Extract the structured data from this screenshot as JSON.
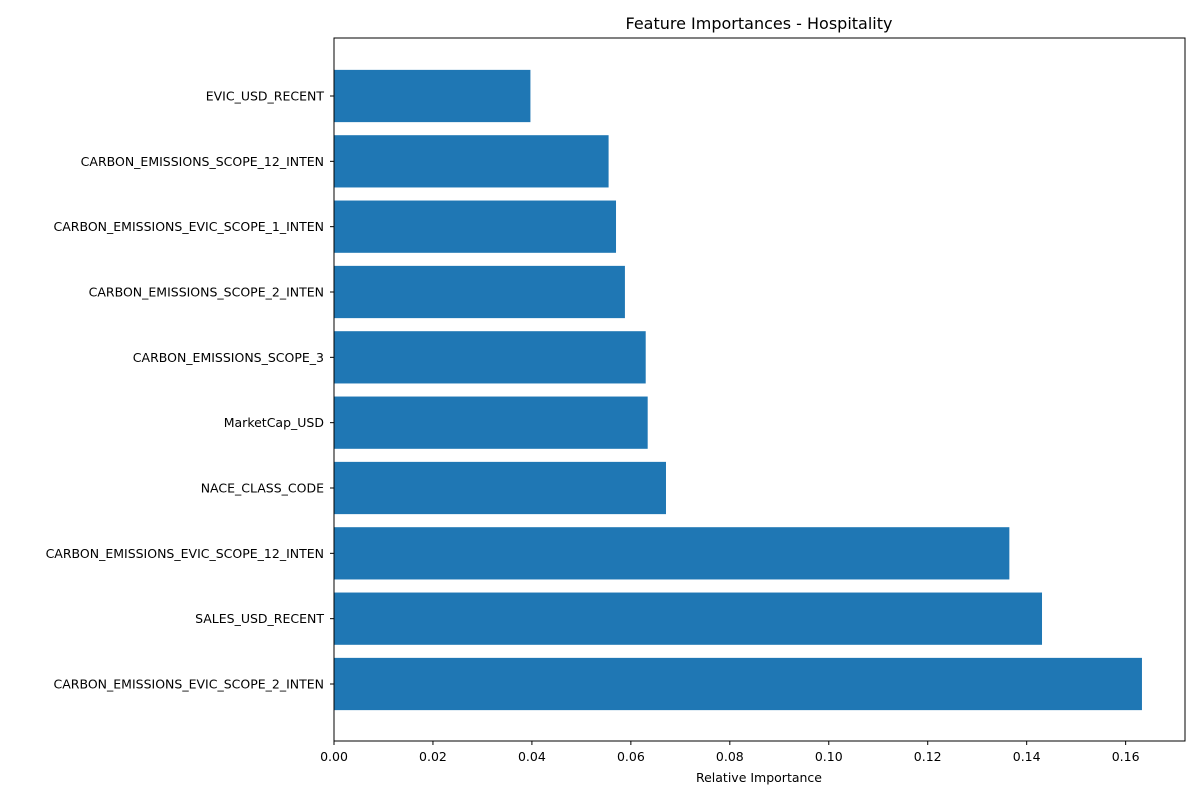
{
  "chart_data": {
    "type": "bar",
    "orientation": "horizontal",
    "title": "Feature Importances - Hospitality",
    "xlabel": "Relative Importance",
    "ylabel": "",
    "xlim": [
      0,
      0.172
    ],
    "xticks": [
      "0.00",
      "0.02",
      "0.04",
      "0.06",
      "0.08",
      "0.10",
      "0.12",
      "0.14",
      "0.16"
    ],
    "categories": [
      "EVIC_USD_RECENT",
      "CARBON_EMISSIONS_SCOPE_12_INTEN",
      "CARBON_EMISSIONS_EVIC_SCOPE_1_INTEN",
      "CARBON_EMISSIONS_SCOPE_2_INTEN",
      "CARBON_EMISSIONS_SCOPE_3",
      "MarketCap_USD",
      "NACE_CLASS_CODE",
      "CARBON_EMISSIONS_EVIC_SCOPE_12_INTEN",
      "SALES_USD_RECENT",
      "CARBON_EMISSIONS_EVIC_SCOPE_2_INTEN"
    ],
    "values": [
      0.0397,
      0.0555,
      0.057,
      0.0588,
      0.063,
      0.0634,
      0.0671,
      0.1365,
      0.1431,
      0.1633
    ],
    "bar_color": "#1f77b4",
    "grid": false
  }
}
